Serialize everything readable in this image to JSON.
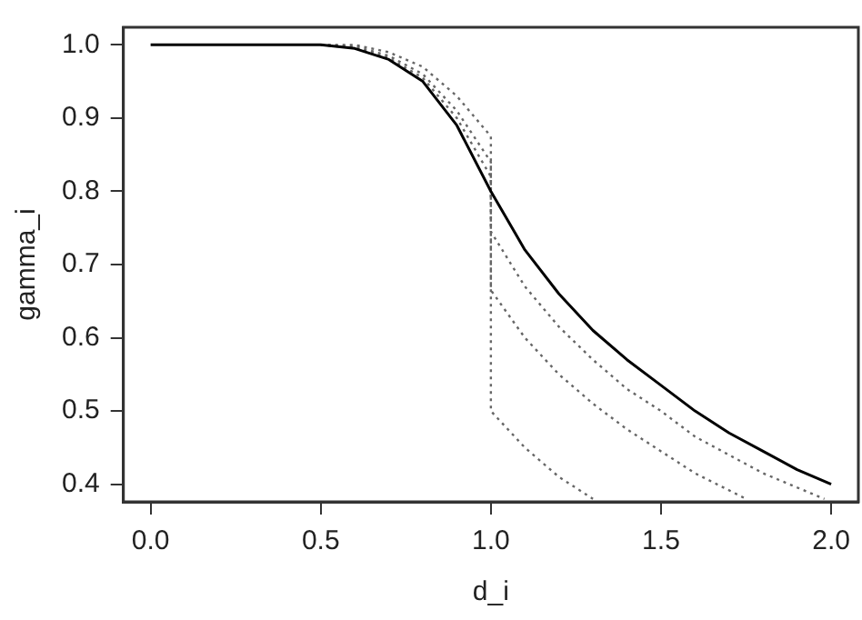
{
  "chart_data": {
    "type": "line",
    "xlabel": "d_i",
    "ylabel": "gamma_i",
    "xlim": [
      -0.08,
      2.08
    ],
    "ylim": [
      0.376,
      1.024
    ],
    "xticks": [
      {
        "value": 0,
        "label": "0.0"
      },
      0.5,
      {
        "value": 1,
        "label": "1.0"
      },
      1.5,
      {
        "value": 2,
        "label": "2.0"
      }
    ],
    "yticks": [
      0.4,
      0.5,
      0.6,
      0.7,
      0.8,
      0.9,
      {
        "value": 1,
        "label": "1.0"
      }
    ],
    "grid": false,
    "legend": false,
    "marker": "none",
    "series": [
      {
        "color": "#000000",
        "line_style": "solid",
        "x": [
          0,
          0.5,
          0.6,
          0.7,
          0.8,
          0.9,
          1.0,
          1.1,
          1.2,
          1.3,
          1.4,
          1.5,
          1.6,
          1.7,
          1.8,
          1.9,
          2.0
        ],
        "values": [
          1.0,
          1.0,
          0.995,
          0.98,
          0.95,
          0.89,
          0.8,
          0.72,
          0.66,
          0.61,
          0.57,
          0.535,
          0.5,
          0.47,
          0.445,
          0.42,
          0.4
        ]
      },
      {
        "color": "#666666",
        "line_style": "dotted",
        "x": [
          0.5,
          0.6,
          0.7,
          0.8,
          0.9,
          1.0,
          1.0,
          1.1,
          1.2,
          1.3
        ],
        "values": [
          1.0,
          1.0,
          0.99,
          0.97,
          0.93,
          0.875,
          0.5,
          0.45,
          0.41,
          0.38
        ]
      },
      {
        "color": "#666666",
        "line_style": "dotted",
        "x": [
          0.5,
          0.6,
          0.7,
          0.8,
          0.9,
          1.0,
          1.0,
          1.1,
          1.2,
          1.3,
          1.4,
          1.5,
          1.6,
          1.75
        ],
        "values": [
          1.0,
          0.998,
          0.985,
          0.96,
          0.91,
          0.84,
          0.665,
          0.6,
          0.55,
          0.51,
          0.475,
          0.445,
          0.415,
          0.38
        ]
      },
      {
        "color": "#666666",
        "line_style": "dotted",
        "x": [
          0.5,
          0.6,
          0.7,
          0.8,
          0.9,
          1.0,
          1.0,
          1.1,
          1.2,
          1.3,
          1.4,
          1.5,
          1.6,
          1.7,
          1.8,
          1.98
        ],
        "values": [
          1.0,
          0.996,
          0.982,
          0.955,
          0.9,
          0.82,
          0.745,
          0.67,
          0.615,
          0.57,
          0.53,
          0.5,
          0.465,
          0.44,
          0.415,
          0.38
        ]
      }
    ]
  }
}
